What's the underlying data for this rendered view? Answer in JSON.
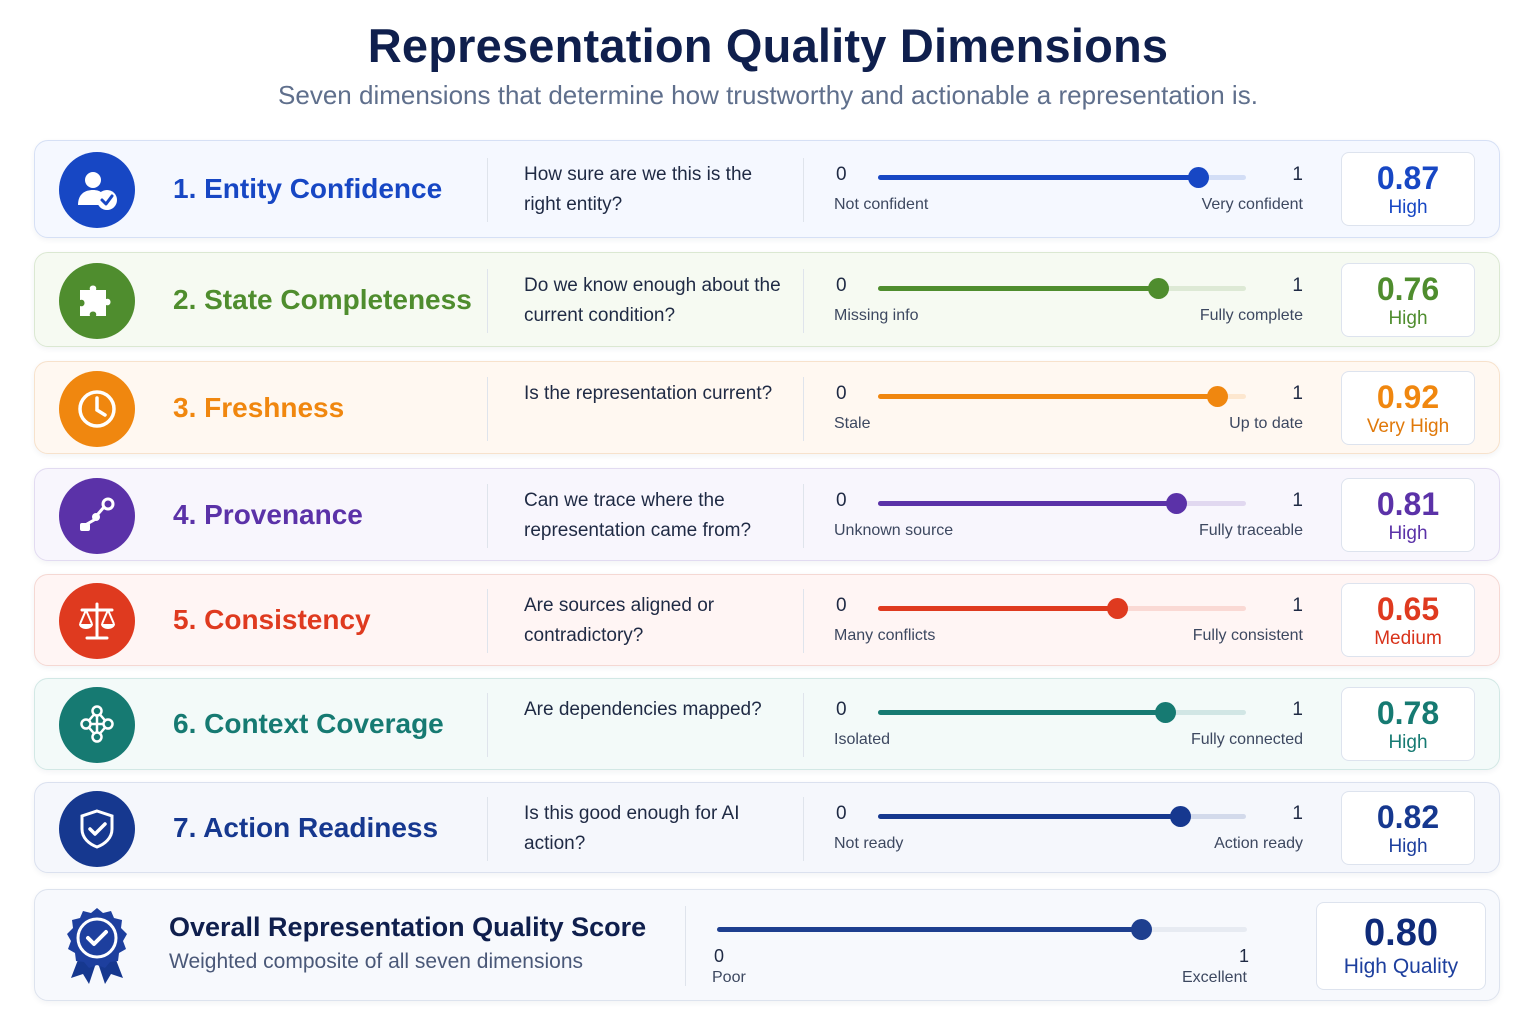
{
  "title": "Representation Quality Dimensions",
  "subtitle": "Seven dimensions that determine how trustworthy and actionable a representation is.",
  "dimensions": [
    {
      "name": "1. Entity Confidence",
      "question": "How sure are we this is the right entity?",
      "min": "0",
      "max": "1",
      "low_label": "Not confident",
      "high_label": "Very confident",
      "value": 0.87,
      "score": "0.87",
      "level": "High",
      "color": "#1747c4",
      "icon": "user-check-icon"
    },
    {
      "name": "2. State Completeness",
      "question": "Do we know enough about the current condition?",
      "min": "0",
      "max": "1",
      "low_label": "Missing info",
      "high_label": "Fully complete",
      "value": 0.76,
      "score": "0.76",
      "level": "High",
      "color": "#4f8d2e",
      "icon": "puzzle-icon"
    },
    {
      "name": "3. Freshness",
      "question": "Is the representation current?",
      "min": "0",
      "max": "1",
      "low_label": "Stale",
      "high_label": "Up to date",
      "value": 0.92,
      "score": "0.92",
      "level": "Very High",
      "color": "#f0870f",
      "icon": "clock-icon"
    },
    {
      "name": "4. Provenance",
      "question": "Can we trace where the representation came from?",
      "min": "0",
      "max": "1",
      "low_label": "Unknown source",
      "high_label": "Fully traceable",
      "value": 0.81,
      "score": "0.81",
      "level": "High",
      "color": "#5b32a8",
      "icon": "trace-path-icon"
    },
    {
      "name": "5. Consistency",
      "question": "Are sources aligned or contradictory?",
      "min": "0",
      "max": "1",
      "low_label": "Many conflicts",
      "high_label": "Fully consistent",
      "value": 0.65,
      "score": "0.65",
      "level": "Medium",
      "color": "#df3a1f",
      "icon": "scales-icon"
    },
    {
      "name": "6. Context Coverage",
      "question": "Are dependencies mapped?",
      "min": "0",
      "max": "1",
      "low_label": "Isolated",
      "high_label": "Fully connected",
      "value": 0.78,
      "score": "0.78",
      "level": "High",
      "color": "#167a72",
      "icon": "network-icon"
    },
    {
      "name": "7. Action Readiness",
      "question": "Is this good enough for AI action?",
      "min": "0",
      "max": "1",
      "low_label": "Not ready",
      "high_label": "Action ready",
      "value": 0.82,
      "score": "0.82",
      "level": "High",
      "color": "#16388f",
      "icon": "shield-check-icon"
    }
  ],
  "overall": {
    "title": "Overall Representation Quality Score",
    "subtitle": "Weighted composite of all seven dimensions",
    "min": "0",
    "max": "1",
    "low_label": "Poor",
    "high_label": "Excellent",
    "value": 0.8,
    "score": "0.80",
    "level": "High Quality",
    "icon": "award-badge-icon"
  }
}
